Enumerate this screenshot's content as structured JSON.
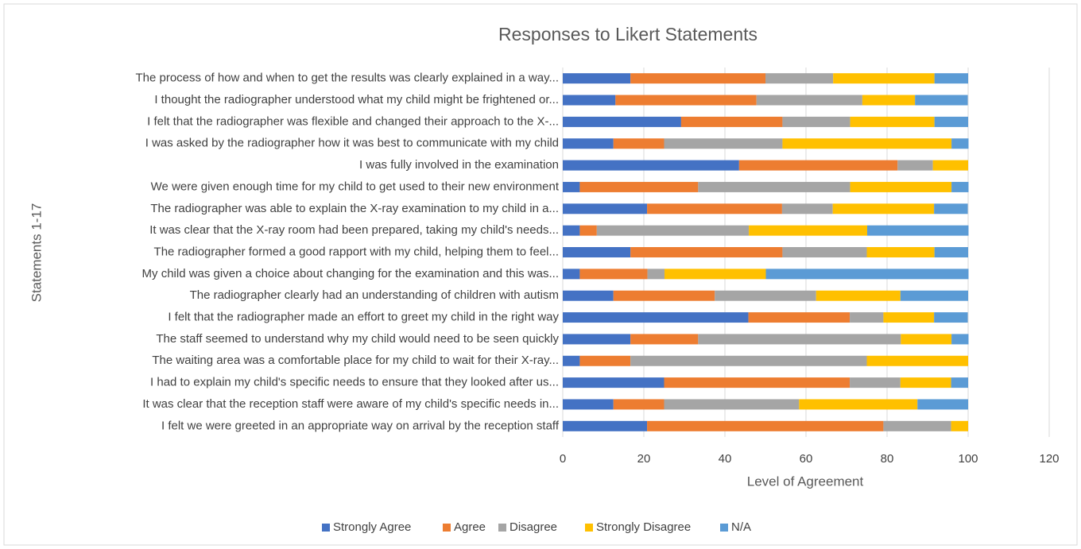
{
  "chart_data": {
    "type": "stacked_barh",
    "title": "Responses to Likert Statements",
    "x_label": "Level of Agreement",
    "y_label": "Statements 1-17",
    "categories": [
      "The process of how and when to get the results was clearly explained in a way...",
      "I thought the radiographer understood what my child might be frightened or...",
      "I felt that the radiographer was flexible and changed their approach to the X-...",
      "I was asked by the radiographer how it was best to communicate with my child",
      "I was fully involved in the examination",
      "We were given enough time for my child to get used to their new environment",
      "The radiographer was able to explain the X-ray examination to my child in a...",
      "It was clear that the X-ray room had been prepared, taking my child's needs...",
      "The radiographer formed a good rapport with my child, helping them to feel...",
      "My child was given a choice about changing for the examination and this was...",
      "The radiographer clearly had an understanding of children with autism",
      "I felt that the radiographer made an effort to greet my child in the right way",
      "The staff seemed to understand why my child would need to be seen quickly",
      "The waiting area was a comfortable place for my child to wait for their X-ray...",
      "I had to explain my child's specific needs to ensure that they  looked after us...",
      "It was clear that the reception staff were aware of my child's specific needs in...",
      "I felt we were greeted in an appropriate way on arrival by the reception staff"
    ],
    "series": [
      {
        "name": "Strongly Agree",
        "color": "#4472c4",
        "values": [
          16.7,
          13.0,
          29.2,
          12.5,
          43.5,
          4.2,
          20.8,
          4.2,
          16.7,
          4.2,
          12.5,
          45.8,
          16.7,
          4.2,
          25,
          12.5,
          20.8
        ]
      },
      {
        "name": "Agree",
        "color": "#ed7d31",
        "values": [
          33.3,
          34.8,
          25,
          12.5,
          39.1,
          29.2,
          33.3,
          4.2,
          37.5,
          16.7,
          25,
          25,
          16.7,
          12.5,
          45.8,
          12.5,
          58.3
        ]
      },
      {
        "name": "Disagree",
        "color": "#a5a5a5",
        "values": [
          16.7,
          26.1,
          16.7,
          29.2,
          8.7,
          37.5,
          12.5,
          37.5,
          20.8,
          4.2,
          25,
          8.3,
          50,
          58.3,
          12.5,
          33.3,
          16.7
        ]
      },
      {
        "name": "Strongly Disagree",
        "color": "#ffc000",
        "values": [
          25,
          13.0,
          20.8,
          41.7,
          8.7,
          25,
          25,
          29.2,
          16.7,
          25,
          20.8,
          12.5,
          12.5,
          25,
          12.5,
          29.2,
          4.2
        ]
      },
      {
        "name": "N/A",
        "color": "#5b9bd5",
        "values": [
          8.3,
          13.0,
          8.3,
          4.2,
          0,
          4.2,
          8.3,
          25,
          8.3,
          50,
          16.7,
          8.3,
          4.2,
          0,
          4.2,
          12.5,
          0
        ]
      }
    ],
    "xlim": [
      0,
      120
    ],
    "xticks": [
      0,
      20,
      40,
      60,
      80,
      100,
      120
    ],
    "grid": true,
    "legend": "bottom"
  }
}
